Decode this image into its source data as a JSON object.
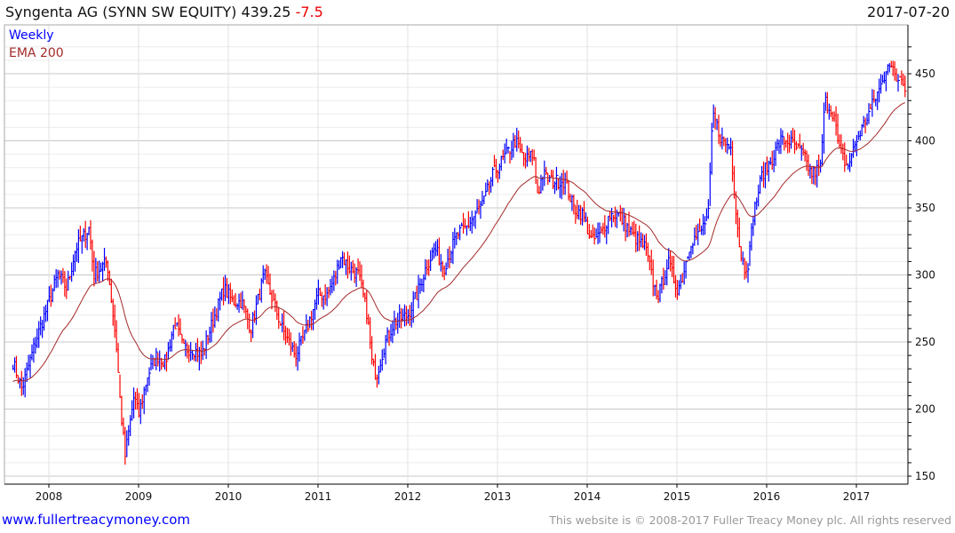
{
  "header": {
    "title": "Syngenta AG (SYNN SW EQUITY) 439.25",
    "change": "-7.5",
    "date": "2017-07-20"
  },
  "legend": {
    "series": "Weekly",
    "ema": "EMA 200"
  },
  "footer": {
    "site": "www.fullertreacymoney.com",
    "copyright": "This website is © 2008-2017 Fuller Treacy Money plc. All rights reserved"
  },
  "colors": {
    "up": "#0000ff",
    "down": "#ff0000",
    "ema": "#a52a2a"
  },
  "chart_data": {
    "type": "line",
    "title": "Syngenta AG (SYNN SW EQUITY)",
    "ylim": [
      150,
      470
    ],
    "yticks": [
      150,
      200,
      250,
      300,
      350,
      400,
      450
    ],
    "xticks": [
      2008,
      2009,
      2010,
      2011,
      2012,
      2013,
      2014,
      2015,
      2016,
      2017
    ],
    "series": [
      {
        "name": "Weekly",
        "anchors": [
          [
            2007.6,
            235
          ],
          [
            2007.7,
            215
          ],
          [
            2007.85,
            250
          ],
          [
            2008.0,
            280
          ],
          [
            2008.1,
            300
          ],
          [
            2008.2,
            290
          ],
          [
            2008.3,
            320
          ],
          [
            2008.45,
            335
          ],
          [
            2008.5,
            300
          ],
          [
            2008.65,
            310
          ],
          [
            2008.75,
            250
          ],
          [
            2008.8,
            200
          ],
          [
            2008.85,
            165
          ],
          [
            2008.95,
            210
          ],
          [
            2009.0,
            195
          ],
          [
            2009.1,
            225
          ],
          [
            2009.2,
            240
          ],
          [
            2009.3,
            235
          ],
          [
            2009.4,
            265
          ],
          [
            2009.5,
            245
          ],
          [
            2009.6,
            245
          ],
          [
            2009.7,
            240
          ],
          [
            2009.85,
            270
          ],
          [
            2009.95,
            290
          ],
          [
            2010.05,
            280
          ],
          [
            2010.15,
            280
          ],
          [
            2010.25,
            260
          ],
          [
            2010.4,
            300
          ],
          [
            2010.5,
            280
          ],
          [
            2010.6,
            260
          ],
          [
            2010.75,
            240
          ],
          [
            2010.85,
            255
          ],
          [
            2011.0,
            285
          ],
          [
            2011.1,
            285
          ],
          [
            2011.2,
            300
          ],
          [
            2011.25,
            315
          ],
          [
            2011.35,
            305
          ],
          [
            2011.45,
            300
          ],
          [
            2011.55,
            270
          ],
          [
            2011.6,
            235
          ],
          [
            2011.65,
            225
          ],
          [
            2011.75,
            250
          ],
          [
            2011.85,
            265
          ],
          [
            2012.0,
            270
          ],
          [
            2012.1,
            285
          ],
          [
            2012.2,
            305
          ],
          [
            2012.3,
            320
          ],
          [
            2012.4,
            305
          ],
          [
            2012.55,
            330
          ],
          [
            2012.65,
            335
          ],
          [
            2012.75,
            345
          ],
          [
            2012.85,
            355
          ],
          [
            2012.95,
            375
          ],
          [
            2013.1,
            390
          ],
          [
            2013.2,
            400
          ],
          [
            2013.3,
            385
          ],
          [
            2013.4,
            390
          ],
          [
            2013.45,
            360
          ],
          [
            2013.5,
            375
          ],
          [
            2013.6,
            370
          ],
          [
            2013.75,
            370
          ],
          [
            2013.85,
            350
          ],
          [
            2013.95,
            345
          ],
          [
            2014.05,
            325
          ],
          [
            2014.15,
            330
          ],
          [
            2014.25,
            345
          ],
          [
            2014.35,
            345
          ],
          [
            2014.5,
            330
          ],
          [
            2014.65,
            320
          ],
          [
            2014.75,
            290
          ],
          [
            2014.8,
            285
          ],
          [
            2014.9,
            310
          ],
          [
            2015.0,
            290
          ],
          [
            2015.05,
            295
          ],
          [
            2015.15,
            325
          ],
          [
            2015.25,
            330
          ],
          [
            2015.35,
            345
          ],
          [
            2015.4,
            420
          ],
          [
            2015.5,
            400
          ],
          [
            2015.6,
            395
          ],
          [
            2015.65,
            355
          ],
          [
            2015.7,
            320
          ],
          [
            2015.75,
            305
          ],
          [
            2015.8,
            310
          ],
          [
            2015.85,
            345
          ],
          [
            2015.95,
            375
          ],
          [
            2016.05,
            385
          ],
          [
            2016.15,
            400
          ],
          [
            2016.25,
            400
          ],
          [
            2016.4,
            390
          ],
          [
            2016.5,
            375
          ],
          [
            2016.6,
            380
          ],
          [
            2016.65,
            430
          ],
          [
            2016.75,
            420
          ],
          [
            2016.8,
            395
          ],
          [
            2016.9,
            380
          ],
          [
            2017.0,
            400
          ],
          [
            2017.1,
            415
          ],
          [
            2017.2,
            430
          ],
          [
            2017.3,
            445
          ],
          [
            2017.35,
            460
          ],
          [
            2017.45,
            445
          ],
          [
            2017.5,
            450
          ],
          [
            2017.55,
            440
          ]
        ]
      },
      {
        "name": "EMA 200",
        "period_weeks": 40
      }
    ]
  }
}
